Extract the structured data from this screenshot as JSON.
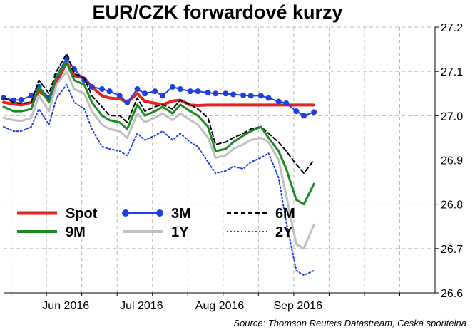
{
  "title": "EUR/CZK forwardové kurzy",
  "source": "Source: Thomson Reuters Datastream, Ceska sporitelna",
  "chart_data": {
    "type": "line",
    "ylim": [
      26.6,
      27.2
    ],
    "yticks": [
      "27.2",
      "27.1",
      "27.0",
      "26.9",
      "26.8",
      "26.7",
      "26.6"
    ],
    "x_range": [
      "2016-05-13",
      "2016-10-31"
    ],
    "xticks": [
      {
        "date": "2016-06-01",
        "label": "Jun 2016"
      },
      {
        "date": "2016-07-01",
        "label": "Jul 2016"
      },
      {
        "date": "2016-08-01",
        "label": "Aug 2016"
      },
      {
        "date": "2016-09-01",
        "label": "Sep 2016"
      }
    ],
    "grid": true,
    "legend_position": "bottom-left",
    "x": [
      "2016-05-13",
      "2016-05-17",
      "2016-05-20",
      "2016-05-24",
      "2016-05-27",
      "2016-05-31",
      "2016-06-03",
      "2016-06-07",
      "2016-06-10",
      "2016-06-14",
      "2016-06-17",
      "2016-06-21",
      "2016-06-24",
      "2016-06-28",
      "2016-07-01",
      "2016-07-05",
      "2016-07-08",
      "2016-07-12",
      "2016-07-15",
      "2016-07-19",
      "2016-07-22",
      "2016-07-26",
      "2016-07-29",
      "2016-08-02",
      "2016-08-05",
      "2016-08-09",
      "2016-08-12",
      "2016-08-16",
      "2016-08-19",
      "2016-08-23",
      "2016-08-26",
      "2016-08-30",
      "2016-09-02",
      "2016-09-06",
      "2016-09-09",
      "2016-09-13"
    ],
    "series": [
      {
        "name": "Spot",
        "color": "#e8221c",
        "style": "solid",
        "width": 4,
        "values": [
          27.03,
          27.026,
          27.024,
          27.03,
          27.055,
          27.038,
          27.075,
          27.12,
          27.09,
          27.085,
          27.065,
          27.045,
          27.04,
          27.038,
          27.03,
          27.05,
          27.032,
          27.028,
          27.025,
          27.033,
          27.035,
          27.024,
          27.023,
          27.024,
          27.024,
          27.024,
          27.024,
          27.024,
          27.024,
          27.024,
          27.024,
          27.024,
          27.024,
          27.024,
          27.024,
          27.024
        ]
      },
      {
        "name": "3M",
        "color": "#1f3fe0",
        "style": "markers",
        "width": 2,
        "values": [
          27.04,
          27.035,
          27.036,
          27.045,
          27.065,
          27.04,
          27.09,
          27.13,
          27.105,
          27.08,
          27.065,
          27.06,
          27.055,
          27.045,
          27.03,
          27.06,
          27.05,
          27.055,
          27.045,
          27.065,
          27.06,
          27.055,
          27.055,
          27.052,
          27.05,
          27.05,
          27.048,
          27.046,
          27.045,
          27.045,
          27.04,
          27.032,
          27.028,
          27.01,
          27.0,
          27.008
        ]
      },
      {
        "name": "6M",
        "color": "#000000",
        "style": "dash",
        "width": 2,
        "values": [
          27.04,
          27.03,
          27.028,
          27.03,
          27.08,
          27.05,
          27.1,
          27.14,
          27.095,
          27.085,
          27.045,
          27.02,
          27.0,
          27.0,
          26.985,
          27.04,
          27.01,
          27.02,
          27.025,
          27.015,
          27.035,
          27.025,
          27.015,
          26.995,
          26.935,
          26.94,
          26.95,
          26.96,
          26.97,
          26.975,
          26.96,
          26.94,
          26.92,
          26.89,
          26.87,
          26.9
        ]
      },
      {
        "name": "9M",
        "color": "#1c8a22",
        "style": "solid",
        "width": 3,
        "values": [
          27.02,
          27.01,
          27.01,
          27.015,
          27.065,
          27.03,
          27.09,
          27.12,
          27.08,
          27.07,
          27.03,
          27.0,
          26.99,
          26.985,
          26.97,
          27.025,
          27.0,
          27.01,
          27.02,
          27.005,
          27.025,
          27.01,
          27.0,
          26.975,
          26.92,
          26.925,
          26.94,
          26.955,
          26.965,
          26.975,
          26.95,
          26.92,
          26.88,
          26.81,
          26.8,
          26.846
        ]
      },
      {
        "name": "1Y",
        "color": "#c0c0c0",
        "style": "solid",
        "width": 3,
        "values": [
          26.995,
          26.99,
          26.988,
          26.995,
          27.045,
          27.01,
          27.07,
          27.1,
          27.06,
          27.05,
          27.01,
          26.98,
          26.97,
          26.965,
          26.95,
          27.005,
          26.985,
          26.995,
          27.005,
          26.99,
          27.005,
          26.99,
          26.98,
          26.95,
          26.905,
          26.91,
          26.925,
          26.935,
          26.945,
          26.95,
          26.94,
          26.9,
          26.82,
          26.71,
          26.7,
          26.754
        ]
      },
      {
        "name": "2Y",
        "color": "#1f3fe0",
        "style": "dot",
        "width": 2,
        "values": [
          26.975,
          26.965,
          26.965,
          26.975,
          27.015,
          26.98,
          27.04,
          27.07,
          27.03,
          27.015,
          26.97,
          26.93,
          26.925,
          26.92,
          26.91,
          26.96,
          26.945,
          26.955,
          26.965,
          26.945,
          26.96,
          26.94,
          26.93,
          26.895,
          26.87,
          26.875,
          26.885,
          26.88,
          26.895,
          26.905,
          26.915,
          26.86,
          26.76,
          26.65,
          26.64,
          26.65
        ]
      }
    ]
  }
}
